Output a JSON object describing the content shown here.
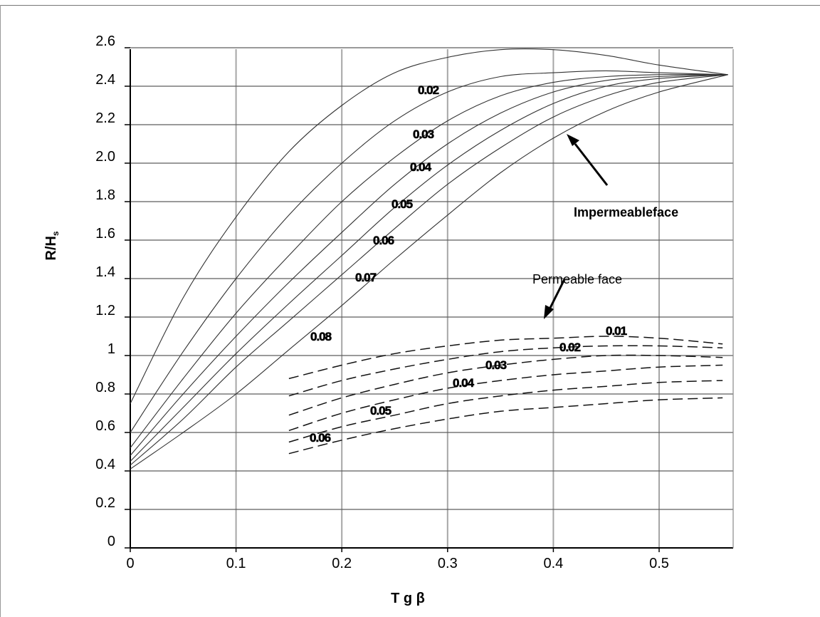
{
  "chart_data": {
    "type": "line",
    "title": "",
    "xlabel": "T g β",
    "ylabel": "R/Hs",
    "xlim": [
      0,
      0.57
    ],
    "ylim": [
      0,
      2.6
    ],
    "x_ticks": [
      "0",
      "0.1",
      "0.2",
      "0.3",
      "0.4",
      "0.5"
    ],
    "y_ticks": [
      "0",
      "0.2",
      "0.4",
      "0.6",
      "0.8",
      "1",
      "1.2",
      "1.4",
      "1.6",
      "1.8",
      "2.0",
      "2.2",
      "2.4",
      "2.6"
    ],
    "grid": true,
    "groups": [
      {
        "name": "Impermeable face",
        "line_style": "solid",
        "series": [
          {
            "name": "0.02",
            "x": [
              0,
              0.05,
              0.1,
              0.15,
              0.2,
              0.25,
              0.3,
              0.35,
              0.4,
              0.45,
              0.5,
              0.565
            ],
            "y": [
              0.75,
              1.3,
              1.72,
              2.06,
              2.3,
              2.47,
              2.55,
              2.59,
              2.59,
              2.56,
              2.51,
              2.46
            ]
          },
          {
            "name": "0.03",
            "x": [
              0,
              0.05,
              0.1,
              0.15,
              0.2,
              0.25,
              0.3,
              0.35,
              0.4,
              0.45,
              0.5,
              0.565
            ],
            "y": [
              0.6,
              1.02,
              1.4,
              1.73,
              2.0,
              2.22,
              2.37,
              2.45,
              2.47,
              2.48,
              2.47,
              2.46
            ]
          },
          {
            "name": "0.04",
            "x": [
              0,
              0.05,
              0.1,
              0.15,
              0.2,
              0.25,
              0.3,
              0.35,
              0.4,
              0.45,
              0.5,
              0.565
            ],
            "y": [
              0.52,
              0.88,
              1.22,
              1.52,
              1.8,
              2.03,
              2.22,
              2.35,
              2.42,
              2.45,
              2.46,
              2.46
            ]
          },
          {
            "name": "0.05",
            "x": [
              0,
              0.05,
              0.1,
              0.15,
              0.2,
              0.25,
              0.3,
              0.35,
              0.4,
              0.45,
              0.5,
              0.565
            ],
            "y": [
              0.48,
              0.8,
              1.1,
              1.38,
              1.64,
              1.89,
              2.1,
              2.26,
              2.37,
              2.43,
              2.45,
              2.46
            ]
          },
          {
            "name": "0.06",
            "x": [
              0,
              0.05,
              0.1,
              0.15,
              0.2,
              0.25,
              0.3,
              0.35,
              0.4,
              0.45,
              0.5,
              0.565
            ],
            "y": [
              0.45,
              0.73,
              1.01,
              1.27,
              1.52,
              1.77,
              1.99,
              2.17,
              2.31,
              2.4,
              2.44,
              2.46
            ]
          },
          {
            "name": "0.07",
            "x": [
              0,
              0.05,
              0.1,
              0.15,
              0.2,
              0.25,
              0.3,
              0.35,
              0.4,
              0.45,
              0.5,
              0.565
            ],
            "y": [
              0.43,
              0.67,
              0.94,
              1.18,
              1.42,
              1.66,
              1.89,
              2.08,
              2.24,
              2.35,
              2.42,
              2.46
            ]
          },
          {
            "name": "0.08",
            "x": [
              0,
              0.05,
              0.1,
              0.15,
              0.2,
              0.25,
              0.3,
              0.35,
              0.4,
              0.45,
              0.5,
              0.565
            ],
            "y": [
              0.41,
              0.6,
              0.8,
              1.03,
              1.26,
              1.5,
              1.73,
              1.95,
              2.13,
              2.27,
              2.37,
              2.46
            ]
          }
        ]
      },
      {
        "name": "Permeable face",
        "line_style": "dashed",
        "series": [
          {
            "name": "0.01",
            "x": [
              0.15,
              0.2,
              0.25,
              0.3,
              0.35,
              0.4,
              0.45,
              0.5,
              0.56
            ],
            "y": [
              0.88,
              0.95,
              1.01,
              1.05,
              1.08,
              1.09,
              1.1,
              1.09,
              1.06
            ]
          },
          {
            "name": "0.02",
            "x": [
              0.15,
              0.2,
              0.25,
              0.3,
              0.35,
              0.4,
              0.45,
              0.5,
              0.56
            ],
            "y": [
              0.79,
              0.87,
              0.93,
              0.98,
              1.02,
              1.04,
              1.05,
              1.05,
              1.04
            ]
          },
          {
            "name": "0.03",
            "x": [
              0.15,
              0.2,
              0.25,
              0.3,
              0.35,
              0.4,
              0.45,
              0.5,
              0.56
            ],
            "y": [
              0.69,
              0.78,
              0.85,
              0.91,
              0.95,
              0.98,
              1.0,
              1.0,
              0.99
            ]
          },
          {
            "name": "0.04",
            "x": [
              0.15,
              0.2,
              0.25,
              0.3,
              0.35,
              0.4,
              0.45,
              0.5,
              0.56
            ],
            "y": [
              0.61,
              0.7,
              0.77,
              0.83,
              0.87,
              0.9,
              0.92,
              0.94,
              0.95
            ]
          },
          {
            "name": "0.05",
            "x": [
              0.15,
              0.2,
              0.25,
              0.3,
              0.35,
              0.4,
              0.45,
              0.5,
              0.56
            ],
            "y": [
              0.55,
              0.63,
              0.69,
              0.75,
              0.79,
              0.82,
              0.84,
              0.86,
              0.87
            ]
          },
          {
            "name": "0.06",
            "x": [
              0.15,
              0.2,
              0.25,
              0.3,
              0.35,
              0.4,
              0.45,
              0.5,
              0.56
            ],
            "y": [
              0.49,
              0.56,
              0.62,
              0.67,
              0.71,
              0.73,
              0.75,
              0.77,
              0.78
            ]
          }
        ]
      }
    ],
    "annotations": [
      {
        "text": "Impermeableface"
      },
      {
        "text": "Permeable face"
      }
    ]
  }
}
